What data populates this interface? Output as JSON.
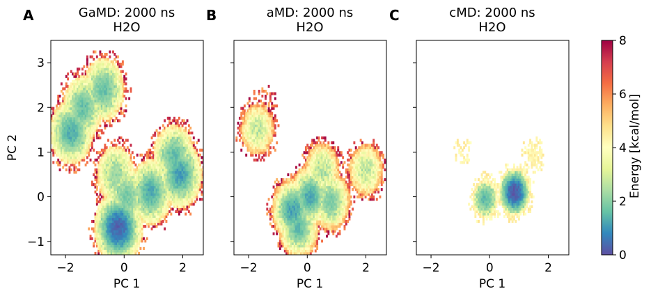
{
  "figure": {
    "panels": [
      {
        "letter": "A",
        "title_line1": "GaMD: 2000 ns",
        "title_line2": "H2O"
      },
      {
        "letter": "B",
        "title_line1": "aMD: 2000 ns",
        "title_line2": "H2O"
      },
      {
        "letter": "C",
        "title_line1": "cMD: 2000 ns",
        "title_line2": "H2O"
      }
    ],
    "xlabel": "PC 1",
    "ylabel": "PC 2",
    "colorbar_label": "Energy [kcal/mol]"
  },
  "chart_data": {
    "type": "heatmap",
    "subtype": "free-energy landscape (hexbin)",
    "shared_axes": {
      "xlim": [
        -2.5,
        2.7
      ],
      "ylim": [
        -1.3,
        3.5
      ],
      "xticks": [
        -2,
        0,
        2
      ],
      "xtick_labels": [
        "−2",
        "0",
        "2"
      ],
      "yticks": [
        -1,
        0,
        1,
        2,
        3
      ],
      "ytick_labels": [
        "−1",
        "0",
        "1",
        "2",
        "3"
      ]
    },
    "colorbar": {
      "range": [
        0,
        8
      ],
      "ticks": [
        0,
        2,
        4,
        6,
        8
      ],
      "tick_labels": [
        "0",
        "2",
        "4",
        "6",
        "8"
      ],
      "colormap": "Spectral_r",
      "colors": [
        "#5e4fa2",
        "#3288bd",
        "#66c2a5",
        "#abdda4",
        "#e6f598",
        "#ffffbf",
        "#fee08b",
        "#fdae61",
        "#f46d43",
        "#d53e4f",
        "#9e0142"
      ]
    },
    "panels": [
      {
        "name": "GaMD: 2000 ns H2O",
        "basins": [
          {
            "x": -0.2,
            "y": -0.7,
            "min_energy": 0.3
          },
          {
            "x": 0.1,
            "y": 0.0,
            "min_energy": 1.8
          },
          {
            "x": -0.3,
            "y": 0.5,
            "min_energy": 2.2
          },
          {
            "x": 0.9,
            "y": 0.1,
            "min_energy": 1.3
          },
          {
            "x": 1.9,
            "y": 0.5,
            "min_energy": 1.1
          },
          {
            "x": 1.7,
            "y": 0.9,
            "min_energy": 1.6
          },
          {
            "x": -1.8,
            "y": 1.45,
            "min_energy": 1.3
          },
          {
            "x": -1.4,
            "y": 2.0,
            "min_energy": 1.6
          },
          {
            "x": -0.7,
            "y": 2.4,
            "min_energy": 1.6
          }
        ]
      },
      {
        "name": "aMD: 2000 ns H2O",
        "basins": [
          {
            "x": -0.5,
            "y": -0.3,
            "min_energy": 1.1
          },
          {
            "x": 0.1,
            "y": 0.0,
            "min_energy": 1.2
          },
          {
            "x": -0.3,
            "y": -0.7,
            "min_energy": 1.5
          },
          {
            "x": 0.8,
            "y": -0.1,
            "min_energy": 1.8
          },
          {
            "x": 0.5,
            "y": 0.6,
            "min_energy": 2.5
          },
          {
            "x": 2.0,
            "y": 0.6,
            "min_energy": 2.7
          },
          {
            "x": -1.7,
            "y": 1.5,
            "min_energy": 2.8
          },
          {
            "x": -1.5,
            "y": 2.0,
            "min_energy": 5.5
          }
        ]
      },
      {
        "name": "cMD: 2000 ns H2O",
        "basins": [
          {
            "x": 0.85,
            "y": 0.1,
            "min_energy": 0.1
          },
          {
            "x": -0.15,
            "y": -0.05,
            "min_energy": 1.5
          },
          {
            "x": 1.5,
            "y": 0.9,
            "min_energy": 3.6
          },
          {
            "x": -0.9,
            "y": 1.0,
            "min_energy": 4.8
          }
        ]
      }
    ]
  }
}
